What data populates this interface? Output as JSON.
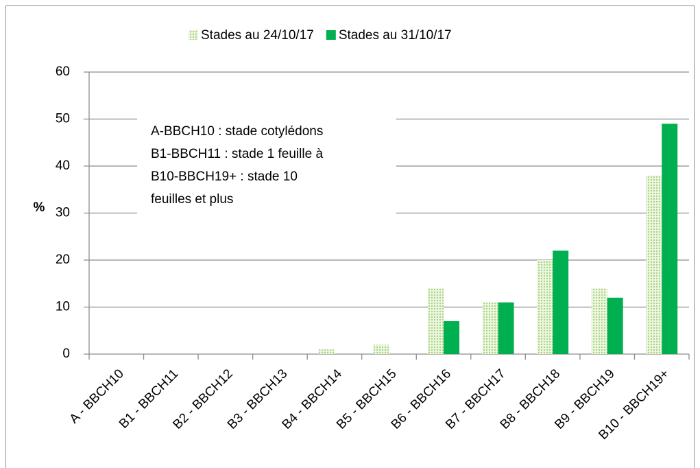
{
  "chart_data": {
    "type": "bar",
    "ylabel": "%",
    "categories": [
      "A - BBCH10",
      "B1 - BBCH11",
      "B2 - BBCH12",
      "B3 - BBCH13",
      "B4 - BBCH14",
      "B5 - BBCH15",
      "B6 - BBCH16",
      "B7 - BBCH17",
      "B8 - BBCH18",
      "B9 - BBCH19",
      "B10 - BBCH19+"
    ],
    "series": [
      {
        "name": "Stades au 24/10/17",
        "color": "#a9d47f",
        "pattern": "dotted",
        "values": [
          0,
          0,
          0,
          0,
          1,
          2,
          14,
          11,
          20,
          14,
          38
        ]
      },
      {
        "name": "Stades au 31/10/17",
        "color": "#00b050",
        "values": [
          0,
          0,
          0,
          0,
          0,
          0,
          7,
          11,
          22,
          12,
          49
        ]
      }
    ],
    "ylim": [
      0,
      60
    ],
    "yticks": [
      0,
      10,
      20,
      30,
      40,
      50,
      60
    ],
    "grid": true,
    "legend": "top",
    "annotation": [
      "A-BBCH10 : stade cotylédons",
      "B1-BBCH11 : stade 1 feuille à",
      "B10-BBCH19+ : stade 10",
      "feuilles et plus"
    ]
  }
}
